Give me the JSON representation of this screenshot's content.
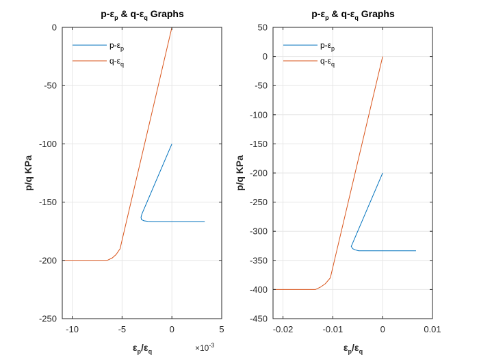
{
  "chart_data": [
    {
      "type": "line",
      "title": "p-εp & q-εq Graphs",
      "xlabel": "εp/εq",
      "ylabel": "p/q KPa",
      "x_exponent": "×10-3",
      "xlim": [
        -11,
        5
      ],
      "ylim": [
        -250,
        0
      ],
      "x_ticks": [
        -10,
        -5,
        0,
        5
      ],
      "y_ticks": [
        -250,
        -200,
        -150,
        -100,
        -50,
        0
      ],
      "grid": true,
      "legend_position": "top-left",
      "series": [
        {
          "name": "p-εp",
          "color": "#0072BD",
          "x": [
            0,
            -3.0,
            -3.1,
            -3.05,
            -2.8,
            -2.4,
            -2.0,
            0,
            3.3
          ],
          "y": [
            -100,
            -160,
            -163,
            -165,
            -166,
            -166.5,
            -166.7,
            -166.7,
            -166.7
          ]
        },
        {
          "name": "q-εq",
          "color": "#D95319",
          "x": [
            -11,
            -6.5,
            -6.0,
            -5.6,
            -5.2,
            0
          ],
          "y": [
            -200,
            -200,
            -198,
            -195,
            -190,
            0
          ]
        }
      ]
    },
    {
      "type": "line",
      "title": "p-εp & q-εq Graphs",
      "xlabel": "εp/εq",
      "ylabel": "p/q KPa",
      "xlim": [
        -0.022,
        0.01
      ],
      "ylim": [
        -450,
        50
      ],
      "x_ticks": [
        -0.02,
        -0.01,
        0,
        0.01
      ],
      "y_ticks": [
        -450,
        -400,
        -350,
        -300,
        -250,
        -200,
        -150,
        -100,
        -50,
        0,
        50
      ],
      "grid": true,
      "legend_position": "top-left",
      "series": [
        {
          "name": "p-εp",
          "color": "#0072BD",
          "x": [
            0,
            -0.0063,
            -0.006,
            -0.0055,
            -0.0048,
            -0.004,
            0,
            0.0067
          ],
          "y": [
            -200,
            -326,
            -330,
            -332,
            -333.5,
            -333.5,
            -333.5,
            -333.5
          ]
        },
        {
          "name": "q-εq",
          "color": "#D95319",
          "x": [
            -0.022,
            -0.0135,
            -0.0125,
            -0.0115,
            -0.0105,
            0
          ],
          "y": [
            -400,
            -400,
            -396,
            -390,
            -380,
            0
          ]
        }
      ]
    }
  ]
}
